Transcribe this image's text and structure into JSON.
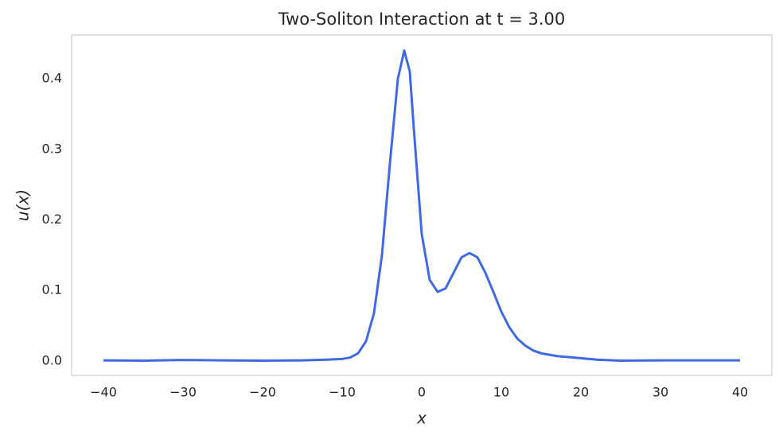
{
  "chart_data": {
    "type": "line",
    "title": "Two-Soliton Interaction at t = 3.00",
    "x_label": "x",
    "y_label": "u(x)",
    "x": [
      -40,
      -35,
      -30,
      -25,
      -20,
      -15,
      -12,
      -10,
      -9,
      -8,
      -7,
      -6,
      -5,
      -4,
      -3,
      -2.2,
      -1.5,
      -1,
      0,
      1,
      2,
      3,
      4,
      5,
      6,
      7,
      8,
      9,
      10,
      11,
      12,
      13,
      14,
      15,
      17,
      19,
      22,
      25,
      30,
      35,
      40
    ],
    "series": [
      {
        "color": "#4169e1",
        "values": [
          0.001,
          0.0005,
          0.0015,
          0.001,
          0.0005,
          0.001,
          0.002,
          0.003,
          0.005,
          0.011,
          0.028,
          0.068,
          0.15,
          0.28,
          0.4,
          0.44,
          0.41,
          0.33,
          0.18,
          0.115,
          0.098,
          0.103,
          0.125,
          0.147,
          0.153,
          0.147,
          0.125,
          0.098,
          0.07,
          0.048,
          0.032,
          0.022,
          0.015,
          0.011,
          0.007,
          0.005,
          0.002,
          0.0005,
          0.001,
          0.001,
          0.001
        ]
      }
    ],
    "xlim": [
      -44,
      44
    ],
    "xticks": [
      {
        "value": -40,
        "label": "−40"
      },
      {
        "value": -30,
        "label": "−30"
      },
      {
        "value": -20,
        "label": "−20"
      },
      {
        "value": -10,
        "label": "−10"
      },
      0,
      10,
      20,
      30,
      40
    ],
    "ylim": [
      -0.0203,
      0.462
    ],
    "yticks": [
      {
        "value": 0,
        "label": "0.0"
      },
      0.1,
      0.2,
      0.3,
      0.4
    ],
    "grid": false
  }
}
